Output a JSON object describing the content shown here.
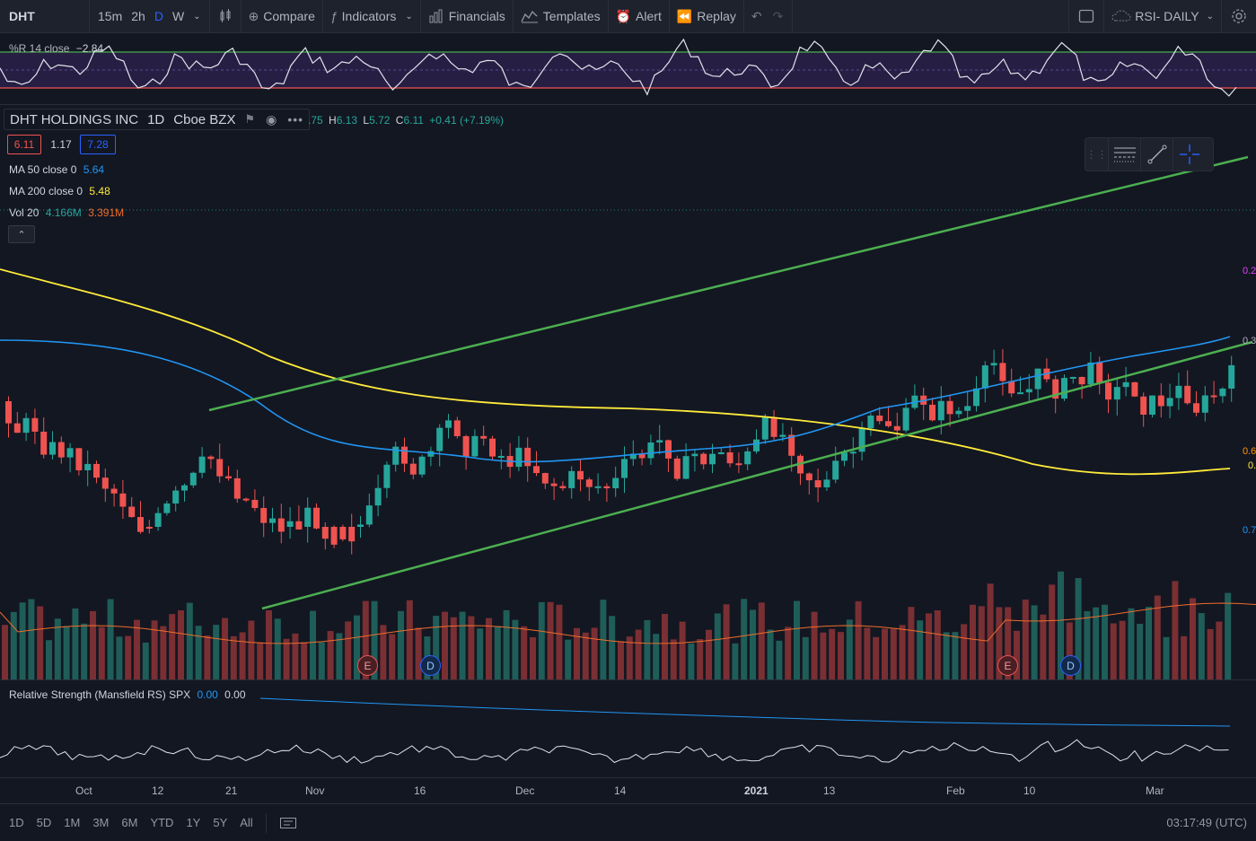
{
  "toolbar": {
    "symbol": "DHT",
    "intervals": [
      "15m",
      "2h",
      "D",
      "W"
    ],
    "compare": "Compare",
    "indicators": "Indicators",
    "financials": "Financials",
    "templates": "Templates",
    "alert": "Alert",
    "replay": "Replay",
    "layout_name": "RSI- DAILY"
  },
  "williams": {
    "label": "%R 14 close",
    "value": "−2.84"
  },
  "main": {
    "title": "DHT HOLDINGS INC",
    "interval": "1D",
    "exchange": "Cboe BZX",
    "ohlc": {
      "o_partial": ".75",
      "h_key": "H",
      "h": "6.13",
      "l_key": "L",
      "l": "5.72",
      "c_key": "C",
      "c": "6.11",
      "change": "+0.41 (+7.19%)"
    },
    "bid": "6.11",
    "spread": "1.17",
    "ask": "7.28",
    "ma50": {
      "label": "MA 50 close 0",
      "value": "5.64"
    },
    "ma200": {
      "label": "MA 200 close 0",
      "value": "5.48"
    },
    "vol": {
      "label": "Vol 20",
      "value1": "4.166M",
      "value2": "3.391M"
    },
    "price_labels": [
      "0.2",
      "0.3",
      "0.6",
      "0.",
      "0.7"
    ],
    "event_markers": [
      "E",
      "D",
      "E",
      "D"
    ]
  },
  "rs": {
    "label": "Relative Strength (Mansfield RS) SPX",
    "value1": "0.00",
    "value2": "0.00"
  },
  "time_axis": [
    "Oct",
    "12",
    "21",
    "Nov",
    "16",
    "Dec",
    "14",
    "2021",
    "13",
    "Feb",
    "10",
    "Mar"
  ],
  "bottom": {
    "ranges": [
      "1D",
      "5D",
      "1M",
      "3M",
      "6M",
      "YTD",
      "1Y",
      "5Y",
      "All"
    ],
    "clock": "03:17:49 (UTC)"
  },
  "colors": {
    "up": "#26a69a",
    "down": "#ef5350",
    "ma50": "#2196f3",
    "ma200": "#ffeb3b",
    "channel": "#4caf50"
  }
}
